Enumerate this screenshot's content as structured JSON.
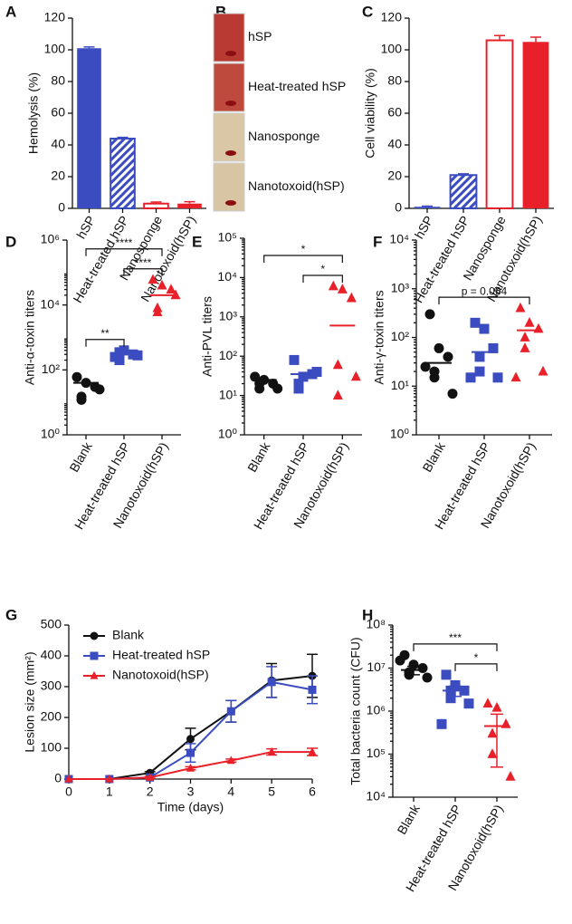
{
  "chart_data": [
    {
      "type": "bar",
      "panel": "A",
      "ylabel": "Hemolysis (%)",
      "categories": [
        "hSP",
        "Heat-treated hSP",
        "Nanosponge",
        "Nanotoxoid(hSP)"
      ],
      "values": [
        101,
        44,
        3,
        3
      ],
      "errors": [
        0.8,
        0.8,
        1,
        1.2
      ],
      "colors": [
        "#3b4cc0",
        "#3b4cc0",
        "#e8202a",
        "#e8202a"
      ],
      "styles": [
        "solid",
        "hatched",
        "outline",
        "solid"
      ],
      "ylim": [
        0,
        120
      ],
      "yticks": [
        0,
        20,
        40,
        60,
        80,
        100,
        120
      ]
    },
    {
      "type": "tubes",
      "panel": "B",
      "labels": [
        "hSP",
        "Heat-treated hSP",
        "Nanosponge",
        "Nanotoxoid(hSP)"
      ],
      "colors": [
        "#b83a32",
        "#bd4a3c",
        "#d9c7a6",
        "#d8c5a3"
      ]
    },
    {
      "type": "bar",
      "panel": "C",
      "ylabel": "Cell viability (%)",
      "categories": [
        "hSP",
        "Heat-treated hSP",
        "Nanosponge",
        "Nanotoxoid(hSP)"
      ],
      "values": [
        1,
        21,
        106,
        105
      ],
      "errors": [
        0.4,
        0.8,
        3,
        3
      ],
      "colors": [
        "#3b4cc0",
        "#3b4cc0",
        "#e8202a",
        "#e8202a"
      ],
      "styles": [
        "solid",
        "hatched",
        "outline",
        "solid"
      ],
      "ylim": [
        0,
        120
      ],
      "yticks": [
        0,
        20,
        40,
        60,
        80,
        100,
        120
      ]
    },
    {
      "type": "dot",
      "panel": "D",
      "ylabel": "Anti-α-toxin titers",
      "log": true,
      "categories": [
        "Blank",
        "Heat-treated hSP",
        "Nanotoxoid(hSP)"
      ],
      "points": [
        [
          60,
          40,
          30,
          12,
          15,
          25
        ],
        [
          250,
          400,
          300,
          200,
          350,
          280
        ],
        [
          60000,
          40000,
          30000,
          8000,
          6000,
          20000
        ]
      ],
      "means": [
        40,
        300,
        20000
      ],
      "colors": [
        "#111111",
        "#3b4cc0",
        "#e8202a"
      ],
      "markers": [
        "circle",
        "square",
        "triangle"
      ],
      "ylim": [
        1,
        1000000
      ],
      "yticks": [
        {
          "value": 1,
          "label": "10⁰"
        },
        {
          "value": 100,
          "label": "10²"
        },
        {
          "value": 10000,
          "label": "10⁴"
        },
        {
          "value": 1000000,
          "label": "10⁶"
        }
      ],
      "brackets": [
        {
          "from": 0,
          "to": 1,
          "label": "**"
        },
        {
          "from": 1,
          "to": 2,
          "label": "****"
        },
        {
          "from": 0,
          "to": 2,
          "label": "****"
        }
      ]
    },
    {
      "type": "dot",
      "panel": "E",
      "ylabel": "Anti-PVL titers",
      "log": true,
      "categories": [
        "Blank",
        "Heat-treated hSP",
        "Nanotoxoid(hSP)"
      ],
      "points": [
        [
          30,
          25,
          20,
          20,
          15,
          15
        ],
        [
          80,
          30,
          35,
          20,
          15,
          40
        ],
        [
          6000,
          5000,
          3000,
          60,
          10,
          30
        ]
      ],
      "means": [
        25,
        35,
        600
      ],
      "colors": [
        "#111111",
        "#3b4cc0",
        "#e8202a"
      ],
      "markers": [
        "circle",
        "square",
        "triangle"
      ],
      "ylim": [
        1,
        100000
      ],
      "yticks": [
        {
          "value": 1,
          "label": "10⁰"
        },
        {
          "value": 10,
          "label": "10¹"
        },
        {
          "value": 100,
          "label": "10²"
        },
        {
          "value": 1000,
          "label": "10³"
        },
        {
          "value": 10000,
          "label": "10⁴"
        },
        {
          "value": 100000,
          "label": "10⁵"
        }
      ],
      "brackets": [
        {
          "from": 1,
          "to": 2,
          "label": "*"
        },
        {
          "from": 0,
          "to": 2,
          "label": "*"
        }
      ]
    },
    {
      "type": "dot",
      "panel": "F",
      "ylabel": "Anti-γ-toxin titers",
      "log": true,
      "categories": [
        "Blank",
        "Heat-treated hSP",
        "Nanotoxoid(hSP)"
      ],
      "points": [
        [
          300,
          60,
          40,
          20,
          15,
          7,
          25
        ],
        [
          200,
          150,
          60,
          40,
          20,
          15,
          15
        ],
        [
          400,
          200,
          150,
          100,
          60,
          20,
          15
        ]
      ],
      "means": [
        30,
        50,
        140
      ],
      "colors": [
        "#111111",
        "#3b4cc0",
        "#e8202a"
      ],
      "markers": [
        "circle",
        "square",
        "triangle"
      ],
      "ylim": [
        1,
        10000
      ],
      "yticks": [
        {
          "value": 1,
          "label": "10⁰"
        },
        {
          "value": 10,
          "label": "10¹"
        },
        {
          "value": 100,
          "label": "10²"
        },
        {
          "value": 1000,
          "label": "10³"
        },
        {
          "value": 10000,
          "label": "10⁴"
        }
      ],
      "brackets": [
        {
          "from": 0,
          "to": 2,
          "label": "p = 0.064"
        }
      ]
    },
    {
      "type": "line",
      "panel": "G",
      "ylabel": "Lesion size (mm²)",
      "xlabel": "Time (days)",
      "x": [
        0,
        1,
        2,
        3,
        4,
        5,
        6
      ],
      "xlim": [
        0,
        6
      ],
      "xticks": [
        0,
        1,
        2,
        3,
        4,
        5,
        6
      ],
      "ylim": [
        0,
        500
      ],
      "yticks": [
        0,
        100,
        200,
        300,
        400,
        500
      ],
      "legend": "upper left",
      "series": [
        {
          "name": "Blank",
          "color": "#111111",
          "marker": "circle",
          "values": [
            0,
            0,
            20,
            130,
            220,
            320,
            335
          ],
          "errors": [
            0,
            0,
            4,
            35,
            35,
            55,
            70
          ]
        },
        {
          "name": "Heat-treated hSP",
          "color": "#3b4cc0",
          "marker": "square",
          "values": [
            0,
            0,
            5,
            85,
            220,
            315,
            290
          ],
          "errors": [
            0,
            0,
            3,
            30,
            35,
            50,
            45
          ]
        },
        {
          "name": "Nanotoxoid(hSP)",
          "color": "#e8202a",
          "marker": "triangle",
          "values": [
            0,
            0,
            5,
            35,
            60,
            88,
            88
          ],
          "errors": [
            0,
            0,
            3,
            5,
            5,
            10,
            12
          ]
        }
      ]
    },
    {
      "type": "dot",
      "panel": "H",
      "ylabel": "Total bacteria count (CFU)",
      "log": true,
      "categories": [
        "Blank",
        "Heat-treated hSP",
        "Nanotoxoid(hSP)"
      ],
      "points": [
        [
          20000000,
          12000000,
          10000000,
          8000000,
          7000000,
          6000000,
          15000000
        ],
        [
          7000000,
          4000000,
          3000000,
          3000000,
          2000000,
          1500000,
          500000
        ],
        [
          1500000,
          1200000,
          500000,
          300000,
          100000,
          30000
        ]
      ],
      "means": [
        9000000,
        3000000,
        450000
      ],
      "errors": [
        2000000,
        800000,
        400000
      ],
      "colors": [
        "#111111",
        "#3b4cc0",
        "#e8202a"
      ],
      "markers": [
        "circle",
        "square",
        "triangle"
      ],
      "ylim": [
        10000,
        100000000
      ],
      "yticks": [
        {
          "value": 10000,
          "label": "10⁴"
        },
        {
          "value": 100000,
          "label": "10⁵"
        },
        {
          "value": 1000000,
          "label": "10⁶"
        },
        {
          "value": 10000000,
          "label": "10⁷"
        },
        {
          "value": 100000000,
          "label": "10⁸"
        }
      ],
      "brackets": [
        {
          "from": 1,
          "to": 2,
          "label": "*"
        },
        {
          "from": 0,
          "to": 2,
          "label": "***"
        }
      ]
    }
  ]
}
